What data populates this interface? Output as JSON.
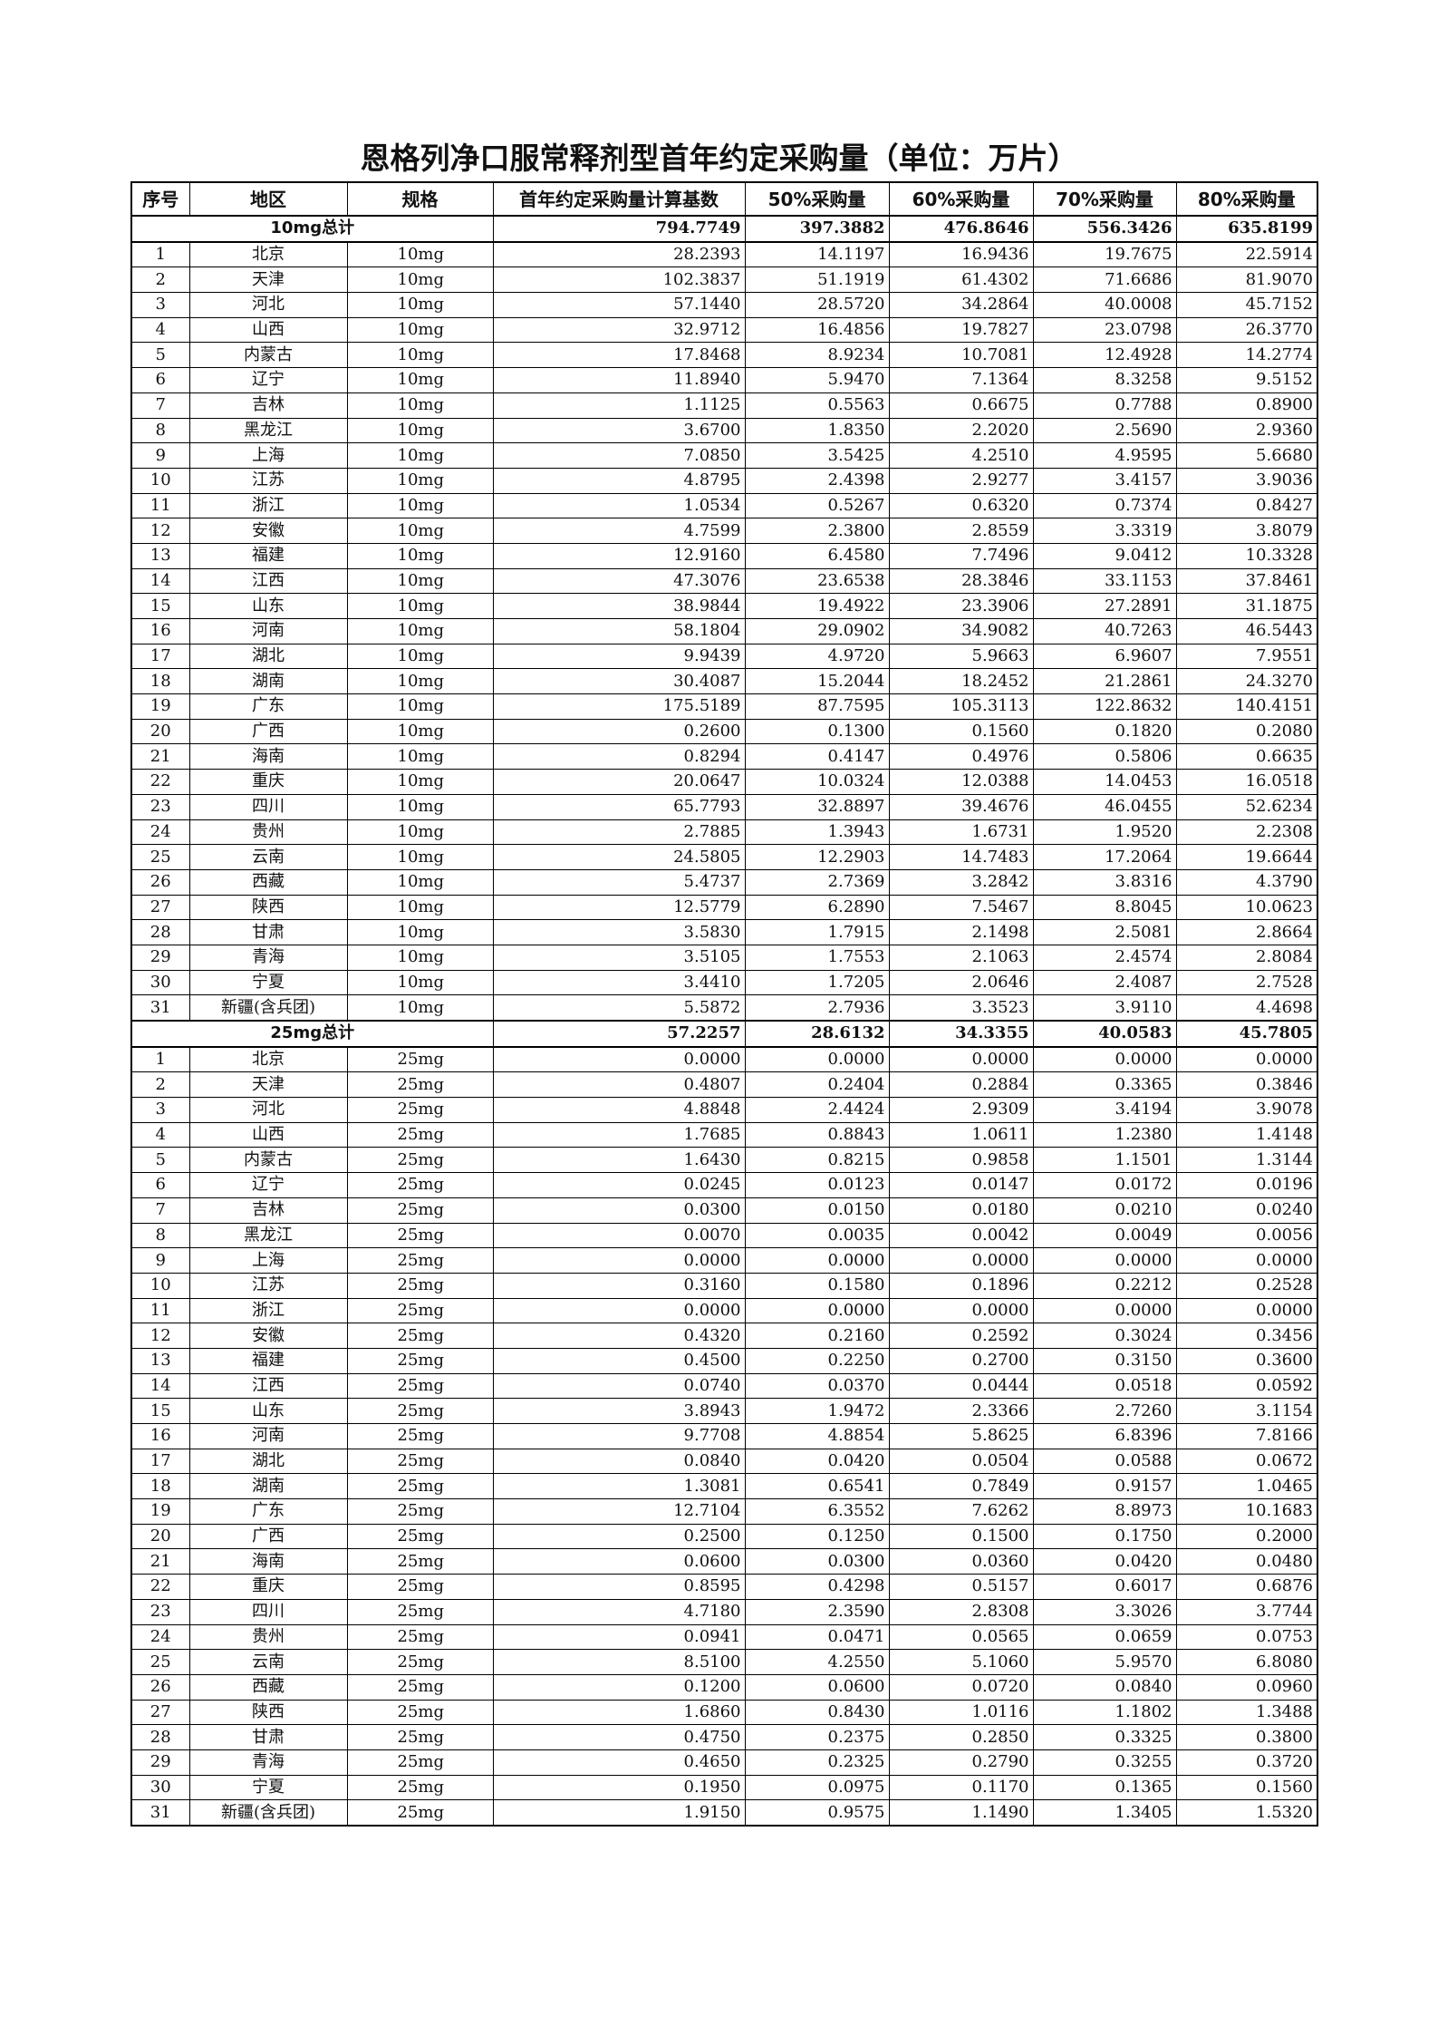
{
  "title": "恩格列净口服常释剂型首年约定采购量（单位：万片）",
  "headers": [
    "序号",
    "地区",
    "规格",
    "首年约定采购量计算基数",
    "50%采购量",
    "60%采购量",
    "70%采购量",
    "80%采购量"
  ],
  "sections": [
    {
      "total_label": "10mg总计",
      "spec": "10mg",
      "totals": [
        "794.7749",
        "397.3882",
        "476.8646",
        "556.3426",
        "635.8199"
      ],
      "rows": [
        [
          "1",
          "北京",
          "28.2393",
          "14.1197",
          "16.9436",
          "19.7675",
          "22.5914"
        ],
        [
          "2",
          "天津",
          "102.3837",
          "51.1919",
          "61.4302",
          "71.6686",
          "81.9070"
        ],
        [
          "3",
          "河北",
          "57.1440",
          "28.5720",
          "34.2864",
          "40.0008",
          "45.7152"
        ],
        [
          "4",
          "山西",
          "32.9712",
          "16.4856",
          "19.7827",
          "23.0798",
          "26.3770"
        ],
        [
          "5",
          "内蒙古",
          "17.8468",
          "8.9234",
          "10.7081",
          "12.4928",
          "14.2774"
        ],
        [
          "6",
          "辽宁",
          "11.8940",
          "5.9470",
          "7.1364",
          "8.3258",
          "9.5152"
        ],
        [
          "7",
          "吉林",
          "1.1125",
          "0.5563",
          "0.6675",
          "0.7788",
          "0.8900"
        ],
        [
          "8",
          "黑龙江",
          "3.6700",
          "1.8350",
          "2.2020",
          "2.5690",
          "2.9360"
        ],
        [
          "9",
          "上海",
          "7.0850",
          "3.5425",
          "4.2510",
          "4.9595",
          "5.6680"
        ],
        [
          "10",
          "江苏",
          "4.8795",
          "2.4398",
          "2.9277",
          "3.4157",
          "3.9036"
        ],
        [
          "11",
          "浙江",
          "1.0534",
          "0.5267",
          "0.6320",
          "0.7374",
          "0.8427"
        ],
        [
          "12",
          "安徽",
          "4.7599",
          "2.3800",
          "2.8559",
          "3.3319",
          "3.8079"
        ],
        [
          "13",
          "福建",
          "12.9160",
          "6.4580",
          "7.7496",
          "9.0412",
          "10.3328"
        ],
        [
          "14",
          "江西",
          "47.3076",
          "23.6538",
          "28.3846",
          "33.1153",
          "37.8461"
        ],
        [
          "15",
          "山东",
          "38.9844",
          "19.4922",
          "23.3906",
          "27.2891",
          "31.1875"
        ],
        [
          "16",
          "河南",
          "58.1804",
          "29.0902",
          "34.9082",
          "40.7263",
          "46.5443"
        ],
        [
          "17",
          "湖北",
          "9.9439",
          "4.9720",
          "5.9663",
          "6.9607",
          "7.9551"
        ],
        [
          "18",
          "湖南",
          "30.4087",
          "15.2044",
          "18.2452",
          "21.2861",
          "24.3270"
        ],
        [
          "19",
          "广东",
          "175.5189",
          "87.7595",
          "105.3113",
          "122.8632",
          "140.4151"
        ],
        [
          "20",
          "广西",
          "0.2600",
          "0.1300",
          "0.1560",
          "0.1820",
          "0.2080"
        ],
        [
          "21",
          "海南",
          "0.8294",
          "0.4147",
          "0.4976",
          "0.5806",
          "0.6635"
        ],
        [
          "22",
          "重庆",
          "20.0647",
          "10.0324",
          "12.0388",
          "14.0453",
          "16.0518"
        ],
        [
          "23",
          "四川",
          "65.7793",
          "32.8897",
          "39.4676",
          "46.0455",
          "52.6234"
        ],
        [
          "24",
          "贵州",
          "2.7885",
          "1.3943",
          "1.6731",
          "1.9520",
          "2.2308"
        ],
        [
          "25",
          "云南",
          "24.5805",
          "12.2903",
          "14.7483",
          "17.2064",
          "19.6644"
        ],
        [
          "26",
          "西藏",
          "5.4737",
          "2.7369",
          "3.2842",
          "3.8316",
          "4.3790"
        ],
        [
          "27",
          "陕西",
          "12.5779",
          "6.2890",
          "7.5467",
          "8.8045",
          "10.0623"
        ],
        [
          "28",
          "甘肃",
          "3.5830",
          "1.7915",
          "2.1498",
          "2.5081",
          "2.8664"
        ],
        [
          "29",
          "青海",
          "3.5105",
          "1.7553",
          "2.1063",
          "2.4574",
          "2.8084"
        ],
        [
          "30",
          "宁夏",
          "3.4410",
          "1.7205",
          "2.0646",
          "2.4087",
          "2.7528"
        ],
        [
          "31",
          "新疆(含兵团)",
          "5.5872",
          "2.7936",
          "3.3523",
          "3.9110",
          "4.4698"
        ]
      ]
    },
    {
      "total_label": "25mg总计",
      "spec": "25mg",
      "totals": [
        "57.2257",
        "28.6132",
        "34.3355",
        "40.0583",
        "45.7805"
      ],
      "rows": [
        [
          "1",
          "北京",
          "0.0000",
          "0.0000",
          "0.0000",
          "0.0000",
          "0.0000"
        ],
        [
          "2",
          "天津",
          "0.4807",
          "0.2404",
          "0.2884",
          "0.3365",
          "0.3846"
        ],
        [
          "3",
          "河北",
          "4.8848",
          "2.4424",
          "2.9309",
          "3.4194",
          "3.9078"
        ],
        [
          "4",
          "山西",
          "1.7685",
          "0.8843",
          "1.0611",
          "1.2380",
          "1.4148"
        ],
        [
          "5",
          "内蒙古",
          "1.6430",
          "0.8215",
          "0.9858",
          "1.1501",
          "1.3144"
        ],
        [
          "6",
          "辽宁",
          "0.0245",
          "0.0123",
          "0.0147",
          "0.0172",
          "0.0196"
        ],
        [
          "7",
          "吉林",
          "0.0300",
          "0.0150",
          "0.0180",
          "0.0210",
          "0.0240"
        ],
        [
          "8",
          "黑龙江",
          "0.0070",
          "0.0035",
          "0.0042",
          "0.0049",
          "0.0056"
        ],
        [
          "9",
          "上海",
          "0.0000",
          "0.0000",
          "0.0000",
          "0.0000",
          "0.0000"
        ],
        [
          "10",
          "江苏",
          "0.3160",
          "0.1580",
          "0.1896",
          "0.2212",
          "0.2528"
        ],
        [
          "11",
          "浙江",
          "0.0000",
          "0.0000",
          "0.0000",
          "0.0000",
          "0.0000"
        ],
        [
          "12",
          "安徽",
          "0.4320",
          "0.2160",
          "0.2592",
          "0.3024",
          "0.3456"
        ],
        [
          "13",
          "福建",
          "0.4500",
          "0.2250",
          "0.2700",
          "0.3150",
          "0.3600"
        ],
        [
          "14",
          "江西",
          "0.0740",
          "0.0370",
          "0.0444",
          "0.0518",
          "0.0592"
        ],
        [
          "15",
          "山东",
          "3.8943",
          "1.9472",
          "2.3366",
          "2.7260",
          "3.1154"
        ],
        [
          "16",
          "河南",
          "9.7708",
          "4.8854",
          "5.8625",
          "6.8396",
          "7.8166"
        ],
        [
          "17",
          "湖北",
          "0.0840",
          "0.0420",
          "0.0504",
          "0.0588",
          "0.0672"
        ],
        [
          "18",
          "湖南",
          "1.3081",
          "0.6541",
          "0.7849",
          "0.9157",
          "1.0465"
        ],
        [
          "19",
          "广东",
          "12.7104",
          "6.3552",
          "7.6262",
          "8.8973",
          "10.1683"
        ],
        [
          "20",
          "广西",
          "0.2500",
          "0.1250",
          "0.1500",
          "0.1750",
          "0.2000"
        ],
        [
          "21",
          "海南",
          "0.0600",
          "0.0300",
          "0.0360",
          "0.0420",
          "0.0480"
        ],
        [
          "22",
          "重庆",
          "0.8595",
          "0.4298",
          "0.5157",
          "0.6017",
          "0.6876"
        ],
        [
          "23",
          "四川",
          "4.7180",
          "2.3590",
          "2.8308",
          "3.3026",
          "3.7744"
        ],
        [
          "24",
          "贵州",
          "0.0941",
          "0.0471",
          "0.0565",
          "0.0659",
          "0.0753"
        ],
        [
          "25",
          "云南",
          "8.5100",
          "4.2550",
          "5.1060",
          "5.9570",
          "6.8080"
        ],
        [
          "26",
          "西藏",
          "0.1200",
          "0.0600",
          "0.0720",
          "0.0840",
          "0.0960"
        ],
        [
          "27",
          "陕西",
          "1.6860",
          "0.8430",
          "1.0116",
          "1.1802",
          "1.3488"
        ],
        [
          "28",
          "甘肃",
          "0.4750",
          "0.2375",
          "0.2850",
          "0.3325",
          "0.3800"
        ],
        [
          "29",
          "青海",
          "0.4650",
          "0.2325",
          "0.2790",
          "0.3255",
          "0.3720"
        ],
        [
          "30",
          "宁夏",
          "0.1950",
          "0.0975",
          "0.1170",
          "0.1365",
          "0.1560"
        ],
        [
          "31",
          "新疆(含兵团)",
          "1.9150",
          "0.9575",
          "1.1490",
          "1.3405",
          "1.5320"
        ]
      ]
    }
  ]
}
